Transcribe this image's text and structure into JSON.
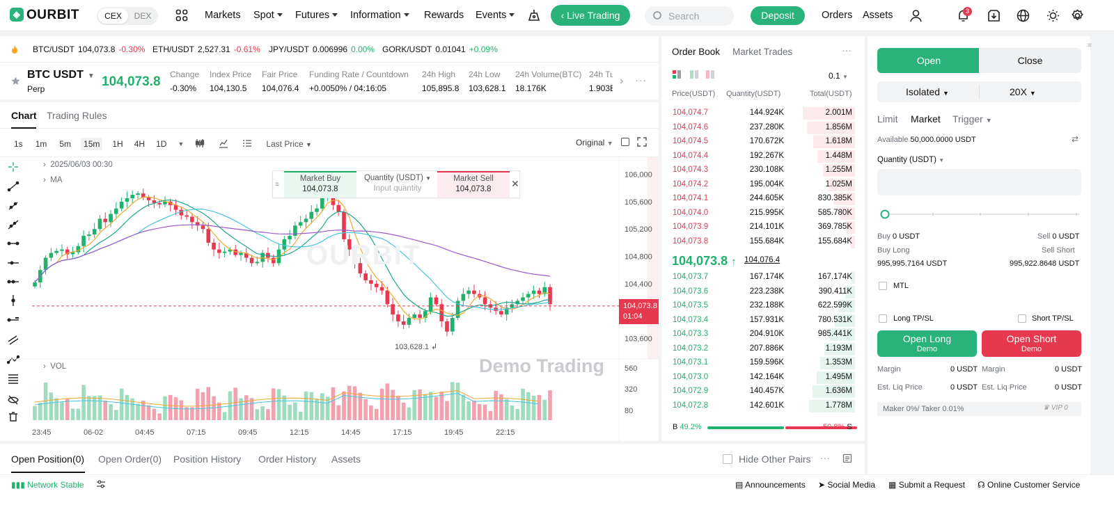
{
  "nav": {
    "logo": "OURBIT",
    "cex": "CEX",
    "dex": "DEX",
    "markets": "Markets",
    "spot": "Spot",
    "futures": "Futures",
    "information": "Information",
    "rewards": "Rewards",
    "events": "Events",
    "live_trading": "Live Trading",
    "search_placeholder": "Search",
    "deposit": "Deposit",
    "orders": "Orders",
    "assets": "Assets",
    "notif_count": "3",
    "brand_color": "#2ab27b"
  },
  "tickers": [
    {
      "pair": "BTC/USDT",
      "price": "104,073.8",
      "change": "-0.30%"
    },
    {
      "pair": "ETH/USDT",
      "price": "2,527.31",
      "change": "-0.61%"
    },
    {
      "pair": "JPY/USDT",
      "price": "0.006996",
      "change": "0.00%"
    },
    {
      "pair": "GORK/USDT",
      "price": "0.01041",
      "change": "+0.09%"
    }
  ],
  "pair": {
    "name": "BTC USDT",
    "type": "Perp",
    "last": "104,073.8",
    "stats": [
      {
        "label": "Change",
        "value": "-0.30%"
      },
      {
        "label": "Index Price",
        "value": "104,130.5"
      },
      {
        "label": "Fair Price",
        "value": "104,076.4"
      },
      {
        "label": "Funding Rate / Countdown",
        "value": "+0.0050% / 04:16:05"
      },
      {
        "label": "24h High",
        "value": "105,895.8"
      },
      {
        "label": "24h Low",
        "value": "103,628.1"
      },
      {
        "label": "24h Volume(BTC)",
        "value": "18.176K"
      },
      {
        "label": "24h Tu",
        "value": "1.903E"
      }
    ]
  },
  "chart_tabs": {
    "chart": "Chart",
    "rules": "Trading Rules"
  },
  "timeframes": [
    "1s",
    "1m",
    "5m",
    "15m",
    "1H",
    "4H",
    "1D"
  ],
  "last_price_label": "Last Price",
  "original_label": "Original",
  "chart_overlay": {
    "date": "2025/06/03 00:30",
    "ma": "MA",
    "vol": "VOL",
    "market_buy": "Market Buy",
    "market_buy_price": "104,073.8",
    "qty_label": "Quantity (USDT)",
    "qty_placeholder": "Input quantity",
    "market_sell": "Market Sell",
    "market_sell_price": "104,073.8",
    "low_label": "103,628.1",
    "last_tag": "104,073.8",
    "last_tag_time": "01:04",
    "watermark": "Demo Trading",
    "brand_watermark": "OURBIT"
  },
  "chart_data": {
    "type": "candlestick",
    "y_ticks": [
      "106,000",
      "105,600",
      "105,200",
      "104,800",
      "104,400",
      "103,600"
    ],
    "vol_ticks": [
      "560",
      "320",
      "80"
    ],
    "x_ticks": [
      "23:45",
      "06-02",
      "04:45",
      "07:15",
      "09:45",
      "12:15",
      "14:45",
      "17:15",
      "19:45",
      "22:15"
    ],
    "ylim": [
      103300,
      106250
    ],
    "last_price": 104073.8,
    "closes": [
      104420,
      104600,
      104780,
      104850,
      104880,
      104900,
      104830,
      104860,
      104950,
      105100,
      105120,
      105200,
      105350,
      105300,
      105420,
      105500,
      105600,
      105650,
      105700,
      105720,
      105660,
      105620,
      105580,
      105560,
      105600,
      105550,
      105480,
      105400,
      105380,
      105300,
      105250,
      105200,
      105000,
      104900,
      104850,
      104870,
      104900,
      104820,
      104850,
      104780,
      104700,
      104720,
      104850,
      104780,
      104700,
      104900,
      105050,
      105100,
      105250,
      105300,
      105350,
      105450,
      105500,
      105700,
      105900,
      105550,
      105450,
      105050,
      104900,
      104700,
      104550,
      104450,
      104400,
      104350,
      104300,
      104100,
      103950,
      103850,
      103800,
      103900,
      103950,
      103900,
      104000,
      104200,
      104100,
      103850,
      103700,
      103900,
      104150,
      104250,
      104300,
      104250,
      104200,
      104100,
      104050,
      104000,
      103950,
      104050,
      104100,
      104150,
      104200,
      104250,
      104300,
      104250,
      104350,
      104100
    ]
  },
  "orderbook": {
    "tab1": "Order Book",
    "tab2": "Market Trades",
    "precision": "0.1",
    "headers": [
      "Price(USDT)",
      "Quantity(USDT)",
      "Total(USDT)"
    ],
    "asks": [
      [
        "104,074.7",
        "144.924K",
        "2.001M",
        100
      ],
      [
        "104,074.6",
        "237.280K",
        "1.856M",
        92
      ],
      [
        "104,074.5",
        "170.672K",
        "1.618M",
        80
      ],
      [
        "104,074.4",
        "192.267K",
        "1.448M",
        72
      ],
      [
        "104,074.3",
        "230.108K",
        "1.255M",
        62
      ],
      [
        "104,074.2",
        "195.004K",
        "1.025M",
        51
      ],
      [
        "104,074.1",
        "244.605K",
        "830.385K",
        41
      ],
      [
        "104,074.0",
        "215.995K",
        "585.780K",
        29
      ],
      [
        "104,073.9",
        "214.101K",
        "369.785K",
        18
      ],
      [
        "104,073.8",
        "155.684K",
        "155.684K",
        8
      ]
    ],
    "mid": "104,073.8",
    "mid_arrow": "↑",
    "mid_ref": "104,076.4",
    "bids": [
      [
        "104,073.7",
        "167.174K",
        "167.174K",
        8
      ],
      [
        "104,073.6",
        "223.238K",
        "390.411K",
        19
      ],
      [
        "104,073.5",
        "232.188K",
        "622.599K",
        31
      ],
      [
        "104,073.4",
        "157.931K",
        "780.531K",
        39
      ],
      [
        "104,073.3",
        "204.910K",
        "985.441K",
        49
      ],
      [
        "104,073.2",
        "207.886K",
        "1.193M",
        59
      ],
      [
        "104,073.1",
        "159.596K",
        "1.353M",
        67
      ],
      [
        "104,073.0",
        "142.164K",
        "1.495M",
        74
      ],
      [
        "104,072.9",
        "140.457K",
        "1.636M",
        81
      ],
      [
        "104,072.8",
        "142.601K",
        "1.778M",
        88
      ]
    ],
    "buy_ratio": "49.2%",
    "sell_ratio": "50.8%",
    "b": "B",
    "s": "S"
  },
  "trade": {
    "open": "Open",
    "close": "Close",
    "margin_mode": "Isolated",
    "leverage": "20X",
    "tabs": {
      "limit": "Limit",
      "market": "Market",
      "trigger": "Trigger"
    },
    "available_label": "Available",
    "available": "50,000.0000 USDT",
    "qty_label": "Quantity (USDT)",
    "buy_label": "Buy",
    "buy_val": "0 USDT",
    "sell_label": "Sell",
    "sell_val": "0 USDT",
    "buy_long": "Buy Long",
    "buy_long_val": "995,995.7164 USDT",
    "sell_short": "Sell Short",
    "sell_short_val": "995,922.8648 USDT",
    "mtl": "MTL",
    "long_tpsl": "Long TP/SL",
    "short_tpsl": "Short TP/SL",
    "open_long": "Open Long",
    "open_short": "Open Short",
    "demo": "Demo",
    "margin": "Margin",
    "margin_val": "0 USDT",
    "liq": "Est. Liq Price",
    "liq_val": "0 USDT",
    "fee": "Maker 0%/ Taker 0.01%",
    "vip": "VIP 0"
  },
  "bottom": {
    "tabs": [
      "Open Position(0)",
      "Open Order(0)",
      "Position History",
      "Order History",
      "Assets"
    ],
    "hide_other": "Hide Other Pairs"
  },
  "status": {
    "network": "Network Stable",
    "announcements": "Announcements",
    "social": "Social Media",
    "submit": "Submit a Request",
    "support": "Online Customer Service"
  }
}
